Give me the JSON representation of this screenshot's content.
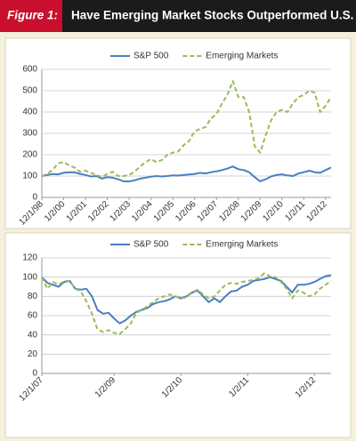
{
  "header": {
    "label": "Figure 1:",
    "title": "Have Emerging Market Stocks Outperformed U.S. Equities?"
  },
  "chart_data": [
    {
      "type": "line",
      "categories": [
        "12/1/98",
        null,
        null,
        null,
        "1/2/00",
        null,
        null,
        null,
        "1/2/01",
        null,
        null,
        null,
        "1/2/02",
        null,
        null,
        null,
        "1/2/03",
        null,
        null,
        null,
        "1/2/04",
        null,
        null,
        null,
        "1/2/05",
        null,
        null,
        null,
        "1/2/06",
        null,
        null,
        null,
        "1/2/07",
        null,
        null,
        null,
        "1/2/08",
        null,
        null,
        null,
        "1/2/09",
        null,
        null,
        null,
        "1/2/10",
        null,
        null,
        null,
        "1/2/11",
        null,
        null,
        null,
        "1/2/12",
        null
      ],
      "series": [
        {
          "name": "S&P 500",
          "color": "#4a7fc1",
          "dash": false,
          "values": [
            100,
            105,
            110,
            108,
            115,
            118,
            117,
            110,
            105,
            98,
            100,
            88,
            95,
            92,
            85,
            75,
            75,
            80,
            88,
            92,
            97,
            100,
            98,
            100,
            103,
            102,
            105,
            107,
            110,
            115,
            112,
            118,
            122,
            128,
            135,
            145,
            132,
            128,
            118,
            95,
            75,
            85,
            98,
            105,
            108,
            103,
            100,
            112,
            118,
            125,
            118,
            115,
            128,
            140
          ]
        },
        {
          "name": "Emerging Markets",
          "color": "#9bbb59",
          "dash": true,
          "values": [
            100,
            110,
            130,
            160,
            165,
            150,
            140,
            120,
            125,
            115,
            105,
            95,
            110,
            120,
            100,
            100,
            105,
            120,
            145,
            165,
            180,
            165,
            175,
            200,
            210,
            215,
            245,
            265,
            310,
            320,
            330,
            370,
            390,
            440,
            480,
            545,
            470,
            470,
            400,
            240,
            210,
            290,
            360,
            400,
            410,
            400,
            440,
            470,
            480,
            500,
            490,
            400,
            430,
            470
          ]
        }
      ],
      "ylim": [
        0,
        600
      ],
      "yticks": [
        0,
        100,
        200,
        300,
        400,
        500,
        600
      ],
      "grid": true,
      "legend": "top"
    },
    {
      "type": "line",
      "categories": [
        "12/1/07",
        null,
        null,
        null,
        null,
        null,
        null,
        null,
        null,
        null,
        null,
        null,
        null,
        "1/2/09",
        null,
        null,
        null,
        null,
        null,
        null,
        null,
        null,
        null,
        null,
        null,
        "1/2/10",
        null,
        null,
        null,
        null,
        null,
        null,
        null,
        null,
        null,
        null,
        null,
        "1/2/11",
        null,
        null,
        null,
        null,
        null,
        null,
        null,
        null,
        null,
        null,
        null,
        "1/2/12",
        null,
        null,
        null
      ],
      "series": [
        {
          "name": "S&P 500",
          "color": "#4a7fc1",
          "dash": false,
          "values": [
            100,
            94,
            92,
            90,
            95,
            96,
            88,
            87,
            88,
            80,
            66,
            62,
            63,
            57,
            52,
            55,
            60,
            64,
            66,
            68,
            72,
            74,
            75,
            77,
            80,
            78,
            80,
            84,
            86,
            80,
            74,
            78,
            74,
            80,
            85,
            86,
            90,
            92,
            96,
            97,
            98,
            100,
            98,
            96,
            90,
            84,
            92,
            92,
            93,
            95,
            98,
            101,
            102
          ]
        },
        {
          "name": "Emerging Markets",
          "color": "#9bbb59",
          "dash": true,
          "values": [
            100,
            88,
            95,
            92,
            96,
            96,
            88,
            85,
            75,
            62,
            46,
            43,
            45,
            42,
            41,
            46,
            52,
            63,
            66,
            70,
            74,
            78,
            80,
            82,
            80,
            78,
            79,
            84,
            87,
            82,
            78,
            80,
            86,
            92,
            94,
            93,
            95,
            96,
            97,
            99,
            104,
            101,
            100,
            95,
            88,
            78,
            86,
            84,
            80,
            82,
            88,
            92,
            96
          ]
        }
      ],
      "ylim": [
        0,
        120
      ],
      "yticks": [
        0,
        20,
        40,
        60,
        80,
        100,
        120
      ],
      "grid": true,
      "legend": "top"
    }
  ]
}
